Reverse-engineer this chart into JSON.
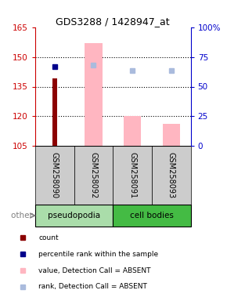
{
  "title": "GDS3288 / 1428947_at",
  "samples": [
    "GSM258090",
    "GSM258092",
    "GSM258091",
    "GSM258093"
  ],
  "ylim_left": [
    105,
    165
  ],
  "ylim_right": [
    0,
    100
  ],
  "yticks_left": [
    105,
    120,
    135,
    150,
    165
  ],
  "yticks_right": [
    0,
    25,
    50,
    75,
    100
  ],
  "ytick_labels_right": [
    "0",
    "25",
    "50",
    "75",
    "100%"
  ],
  "bar_values": [
    null,
    157,
    120,
    116
  ],
  "bar_color": "#FFB6C1",
  "count_values": [
    139,
    null,
    null,
    null
  ],
  "count_color": "#8B0000",
  "percentile_values": [
    145,
    null,
    null,
    null
  ],
  "percentile_color": "#00008B",
  "rank_absent_values": [
    null,
    146,
    143,
    143
  ],
  "rank_absent_color": "#AABBDD",
  "bar_base": 105,
  "dotted_lines": [
    150,
    135,
    120
  ],
  "legend_items": [
    {
      "label": "count",
      "color": "#8B0000"
    },
    {
      "label": "percentile rank within the sample",
      "color": "#00008B"
    },
    {
      "label": "value, Detection Call = ABSENT",
      "color": "#FFB6C1"
    },
    {
      "label": "rank, Detection Call = ABSENT",
      "color": "#AABBDD"
    }
  ],
  "left_axis_color": "#CC0000",
  "right_axis_color": "#0000CC",
  "group_label_pseudopodia": "pseudopodia",
  "group_label_cell_bodies": "cell bodies",
  "other_label": "other",
  "bg_color_plot": "white",
  "bg_color_xlabel": "#CCCCCC",
  "pseudo_color": "#AADDAA",
  "cell_color": "#44BB44",
  "bar_width": 0.45,
  "count_bar_width": 0.12
}
